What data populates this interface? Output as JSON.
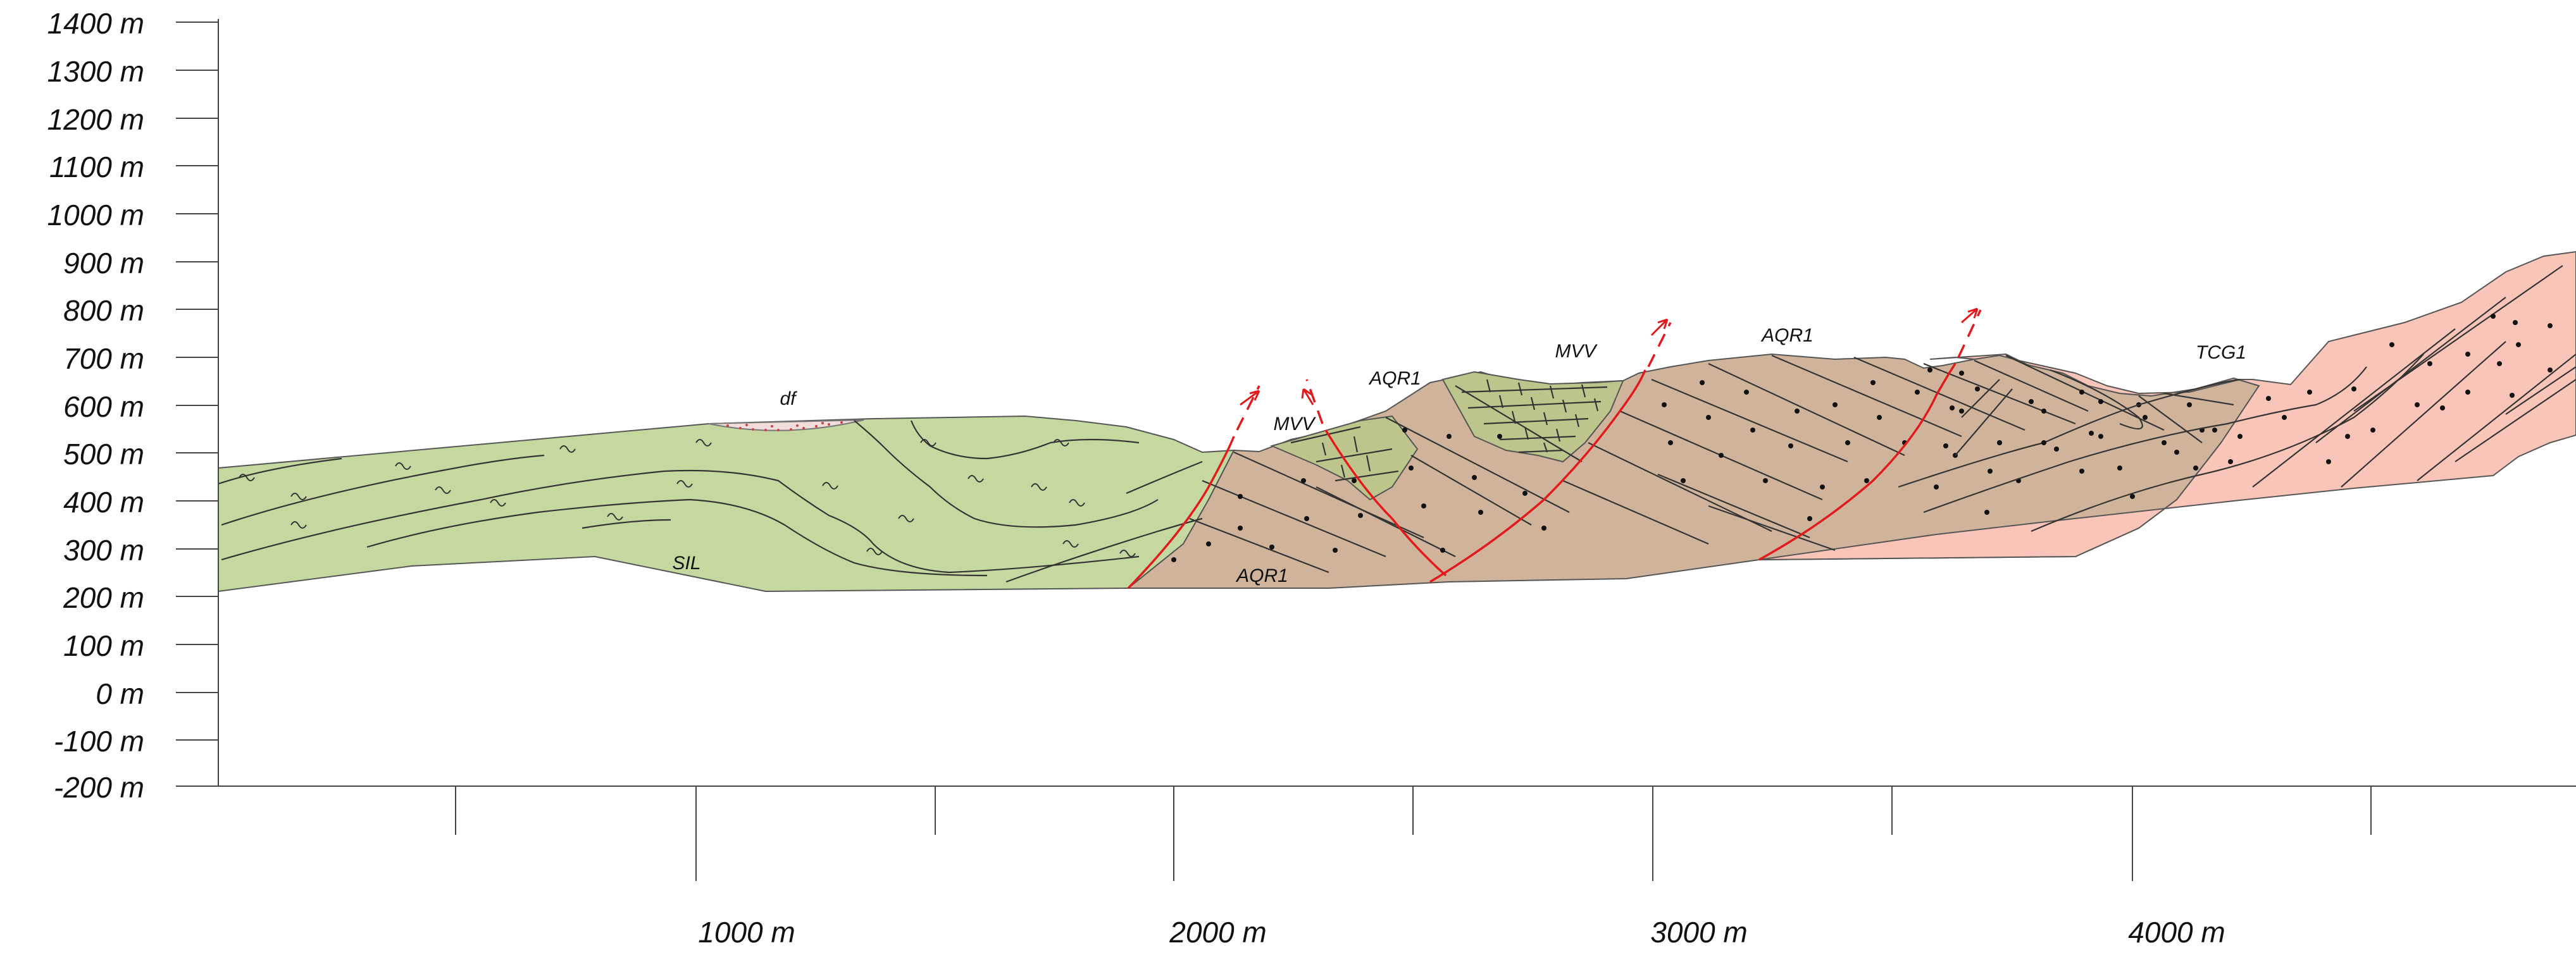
{
  "y_axis": {
    "labels": [
      "1400 m",
      "1300 m",
      "1200 m",
      "1100 m",
      "1000 m",
      "900 m",
      "800 m",
      "700 m",
      "600 m",
      "500 m",
      "400 m",
      "300 m",
      "200 m",
      "100 m",
      "0 m",
      "-100 m",
      "-200 m"
    ]
  },
  "x_axis": {
    "labels": [
      "1000 m",
      "2000 m",
      "3000 m",
      "4000 m"
    ]
  },
  "units": {
    "sil": "SIL",
    "df": "df",
    "aqr1_low": "AQR1",
    "mvv_left": "MVV",
    "aqr1_mid": "AQR1",
    "mvv_mid": "MVV",
    "aqr1_high": "AQR1",
    "tcg1": "TCG1"
  },
  "colors": {
    "sil": "#c5d8a0",
    "aqr1": "#cfb39b",
    "mvv": "#bdc48c",
    "tcg1": "#f9c5b8",
    "df": "#f3dcdc",
    "fault": "#e31a1c"
  }
}
